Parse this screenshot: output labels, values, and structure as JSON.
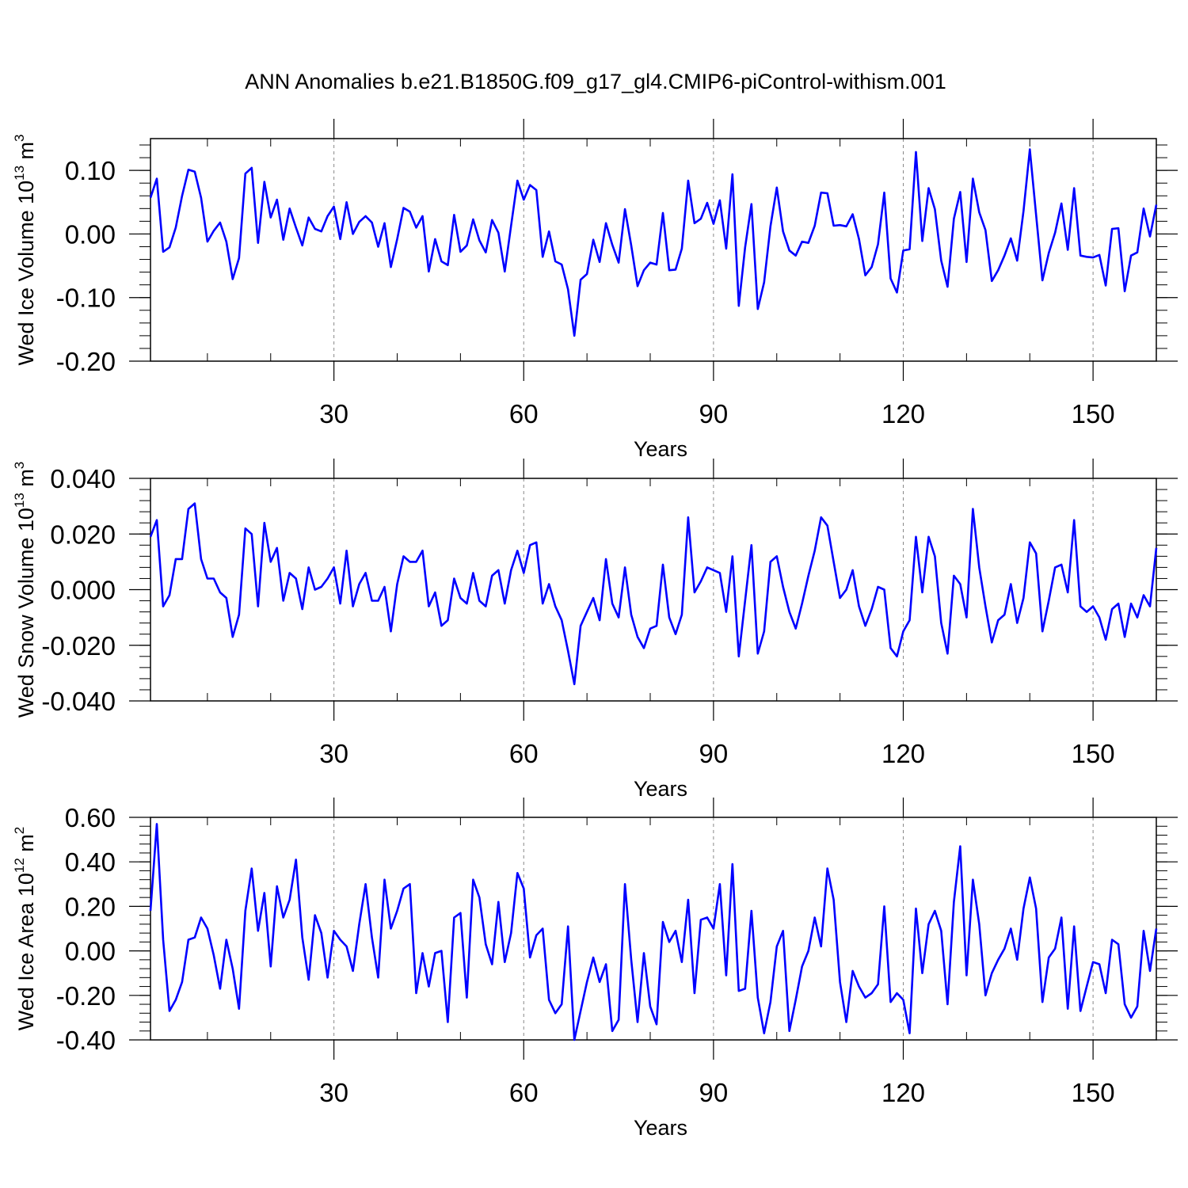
{
  "title": "ANN Anomalies b.e21.B1850G.f09_g17_gl4.CMIP6-piControl-withism.001",
  "line_color": "#0000ff",
  "chart_data": [
    {
      "type": "line",
      "ylabel": "Wed Ice Volume 10",
      "ylabel_exp": "13",
      "ylabel_unit": " m",
      "ylabel_unit_exp": "3",
      "xlabel": "Years",
      "xlim": [
        1,
        160
      ],
      "ylim": [
        -0.2,
        0.15
      ],
      "yticks": [
        -0.2,
        -0.1,
        0.0,
        0.1
      ],
      "ytick_labels": [
        "-0.20",
        "-0.10",
        "0.00",
        "0.10"
      ],
      "yminor_step": 0.02,
      "xticks": [
        30,
        60,
        90,
        120,
        150
      ],
      "xtick_labels": [
        "30",
        "60",
        "90",
        "120",
        "150"
      ],
      "xminor_step": 10,
      "x_start": 1,
      "values": [
        0.057,
        0.087,
        -0.028,
        -0.021,
        0.01,
        0.06,
        0.101,
        0.098,
        0.057,
        -0.012,
        0.005,
        0.018,
        -0.012,
        -0.071,
        -0.038,
        0.095,
        0.104,
        -0.014,
        0.082,
        0.026,
        0.054,
        -0.009,
        0.04,
        0.01,
        -0.018,
        0.026,
        0.008,
        0.004,
        0.028,
        0.043,
        -0.008,
        0.05,
        0.0,
        0.019,
        0.028,
        0.018,
        -0.02,
        0.017,
        -0.052,
        -0.008,
        0.041,
        0.035,
        0.01,
        0.028,
        -0.059,
        -0.008,
        -0.043,
        -0.049,
        0.03,
        -0.028,
        -0.018,
        0.023,
        -0.01,
        -0.029,
        0.022,
        0.002,
        -0.059,
        0.013,
        0.084,
        0.054,
        0.077,
        0.069,
        -0.036,
        0.004,
        -0.043,
        -0.048,
        -0.087,
        -0.16,
        -0.072,
        -0.063,
        -0.009,
        -0.044,
        0.017,
        -0.017,
        -0.045,
        0.039,
        -0.018,
        -0.082,
        -0.057,
        -0.045,
        -0.048,
        0.033,
        -0.057,
        -0.056,
        -0.023,
        0.084,
        0.017,
        0.024,
        0.049,
        0.016,
        0.053,
        -0.023,
        0.094,
        -0.113,
        -0.021,
        0.047,
        -0.118,
        -0.076,
        0.012,
        0.073,
        0.004,
        -0.026,
        -0.034,
        -0.012,
        -0.014,
        0.013,
        0.065,
        0.064,
        0.013,
        0.014,
        0.012,
        0.031,
        -0.008,
        -0.065,
        -0.052,
        -0.016,
        0.065,
        -0.07,
        -0.092,
        -0.026,
        -0.024,
        0.129,
        -0.011,
        0.072,
        0.039,
        -0.042,
        -0.083,
        0.024,
        0.066,
        -0.044,
        0.087,
        0.034,
        0.006,
        -0.074,
        -0.057,
        -0.034,
        -0.007,
        -0.042,
        0.036,
        0.133,
        0.03,
        -0.073,
        -0.03,
        0.002,
        0.048,
        -0.025,
        0.072,
        -0.034,
        -0.036,
        -0.037,
        -0.033,
        -0.081,
        0.008,
        0.009,
        -0.09,
        -0.034,
        -0.029,
        0.04,
        -0.004,
        0.046
      ]
    },
    {
      "type": "line",
      "ylabel": "Wed Snow Volume 10",
      "ylabel_exp": "13",
      "ylabel_unit": " m",
      "ylabel_unit_exp": "3",
      "xlabel": "Years",
      "xlim": [
        1,
        160
      ],
      "ylim": [
        -0.04,
        0.04
      ],
      "yticks": [
        -0.04,
        -0.02,
        0.0,
        0.02,
        0.04
      ],
      "ytick_labels": [
        "-0.040",
        "-0.020",
        "0.000",
        "0.020",
        "0.040"
      ],
      "yminor_step": 0.004,
      "xticks": [
        30,
        60,
        90,
        120,
        150
      ],
      "xtick_labels": [
        "30",
        "60",
        "90",
        "120",
        "150"
      ],
      "xminor_step": 10,
      "x_start": 1,
      "values": [
        0.019,
        0.025,
        -0.006,
        -0.002,
        0.011,
        0.011,
        0.029,
        0.031,
        0.011,
        0.004,
        0.004,
        -0.001,
        -0.003,
        -0.017,
        -0.009,
        0.022,
        0.02,
        -0.006,
        0.024,
        0.01,
        0.015,
        -0.004,
        0.006,
        0.004,
        -0.007,
        0.008,
        0.0,
        0.001,
        0.004,
        0.008,
        -0.005,
        0.014,
        -0.006,
        0.002,
        0.006,
        -0.004,
        -0.004,
        0.001,
        -0.015,
        0.002,
        0.012,
        0.01,
        0.01,
        0.014,
        -0.006,
        -0.001,
        -0.013,
        -0.011,
        0.004,
        -0.003,
        -0.005,
        0.006,
        -0.004,
        -0.006,
        0.005,
        0.007,
        -0.005,
        0.007,
        0.014,
        0.006,
        0.016,
        0.017,
        -0.005,
        0.002,
        -0.006,
        -0.011,
        -0.022,
        -0.034,
        -0.013,
        -0.008,
        -0.003,
        -0.011,
        0.011,
        -0.005,
        -0.01,
        0.008,
        -0.009,
        -0.017,
        -0.021,
        -0.014,
        -0.013,
        0.009,
        -0.01,
        -0.016,
        -0.009,
        0.026,
        -0.001,
        0.003,
        0.008,
        0.007,
        0.006,
        -0.008,
        0.012,
        -0.024,
        -0.004,
        0.016,
        -0.023,
        -0.015,
        0.01,
        0.012,
        0.001,
        -0.008,
        -0.014,
        -0.005,
        0.005,
        0.014,
        0.026,
        0.023,
        0.01,
        -0.003,
        0.0,
        0.007,
        -0.006,
        -0.013,
        -0.007,
        0.001,
        0.0,
        -0.021,
        -0.024,
        -0.015,
        -0.011,
        0.019,
        -0.001,
        0.019,
        0.012,
        -0.012,
        -0.023,
        0.005,
        0.002,
        -0.01,
        0.029,
        0.008,
        -0.006,
        -0.019,
        -0.011,
        -0.009,
        0.002,
        -0.012,
        -0.003,
        0.017,
        0.013,
        -0.015,
        -0.004,
        0.008,
        0.009,
        -0.001,
        0.025,
        -0.006,
        -0.008,
        -0.006,
        -0.01,
        -0.018,
        -0.007,
        -0.005,
        -0.017,
        -0.005,
        -0.01,
        -0.002,
        -0.006,
        0.015
      ]
    },
    {
      "type": "line",
      "ylabel": "Wed Ice Area 10",
      "ylabel_exp": "12",
      "ylabel_unit": " m",
      "ylabel_unit_exp": "2",
      "xlabel": "Years",
      "xlim": [
        1,
        160
      ],
      "ylim": [
        -0.4,
        0.6
      ],
      "yticks": [
        -0.4,
        -0.2,
        0.0,
        0.2,
        0.4,
        0.6
      ],
      "ytick_labels": [
        "-0.40",
        "-0.20",
        "0.00",
        "0.20",
        "0.40",
        "0.60"
      ],
      "yminor_step": 0.04,
      "xticks": [
        30,
        60,
        90,
        120,
        150
      ],
      "xtick_labels": [
        "30",
        "60",
        "90",
        "120",
        "150"
      ],
      "xminor_step": 10,
      "x_start": 1,
      "values": [
        0.18,
        0.57,
        0.05,
        -0.27,
        -0.22,
        -0.14,
        0.05,
        0.06,
        0.15,
        0.1,
        -0.02,
        -0.17,
        0.05,
        -0.08,
        -0.26,
        0.18,
        0.37,
        0.09,
        0.26,
        -0.07,
        0.29,
        0.15,
        0.23,
        0.41,
        0.06,
        -0.13,
        0.16,
        0.08,
        -0.12,
        0.09,
        0.05,
        0.02,
        -0.09,
        0.12,
        0.3,
        0.06,
        -0.12,
        0.32,
        0.1,
        0.18,
        0.28,
        0.3,
        -0.19,
        -0.01,
        -0.16,
        -0.01,
        0.0,
        -0.32,
        0.15,
        0.17,
        -0.21,
        0.32,
        0.24,
        0.03,
        -0.06,
        0.22,
        -0.05,
        0.08,
        0.35,
        0.28,
        -0.03,
        0.07,
        0.1,
        -0.22,
        -0.28,
        -0.24,
        0.11,
        -0.4,
        -0.27,
        -0.14,
        -0.03,
        -0.14,
        -0.06,
        -0.36,
        -0.31,
        0.3,
        -0.04,
        -0.32,
        -0.01,
        -0.25,
        -0.33,
        0.13,
        0.04,
        0.09,
        -0.05,
        0.23,
        -0.19,
        0.14,
        0.15,
        0.1,
        0.3,
        -0.11,
        0.39,
        -0.18,
        -0.17,
        0.18,
        -0.21,
        -0.37,
        -0.23,
        0.02,
        0.09,
        -0.36,
        -0.22,
        -0.07,
        0.0,
        0.15,
        0.02,
        0.37,
        0.23,
        -0.14,
        -0.32,
        -0.09,
        -0.16,
        -0.21,
        -0.19,
        -0.15,
        0.2,
        -0.23,
        -0.19,
        -0.22,
        -0.37,
        0.19,
        -0.1,
        0.12,
        0.18,
        0.09,
        -0.24,
        0.22,
        0.47,
        -0.11,
        0.32,
        0.12,
        -0.2,
        -0.1,
        -0.04,
        0.01,
        0.1,
        -0.04,
        0.19,
        0.33,
        0.19,
        -0.23,
        -0.03,
        0.01,
        0.15,
        -0.26,
        0.11,
        -0.27,
        -0.16,
        -0.05,
        -0.06,
        -0.19,
        0.05,
        0.03,
        -0.24,
        -0.3,
        -0.25,
        0.09,
        -0.09,
        0.1
      ]
    }
  ]
}
